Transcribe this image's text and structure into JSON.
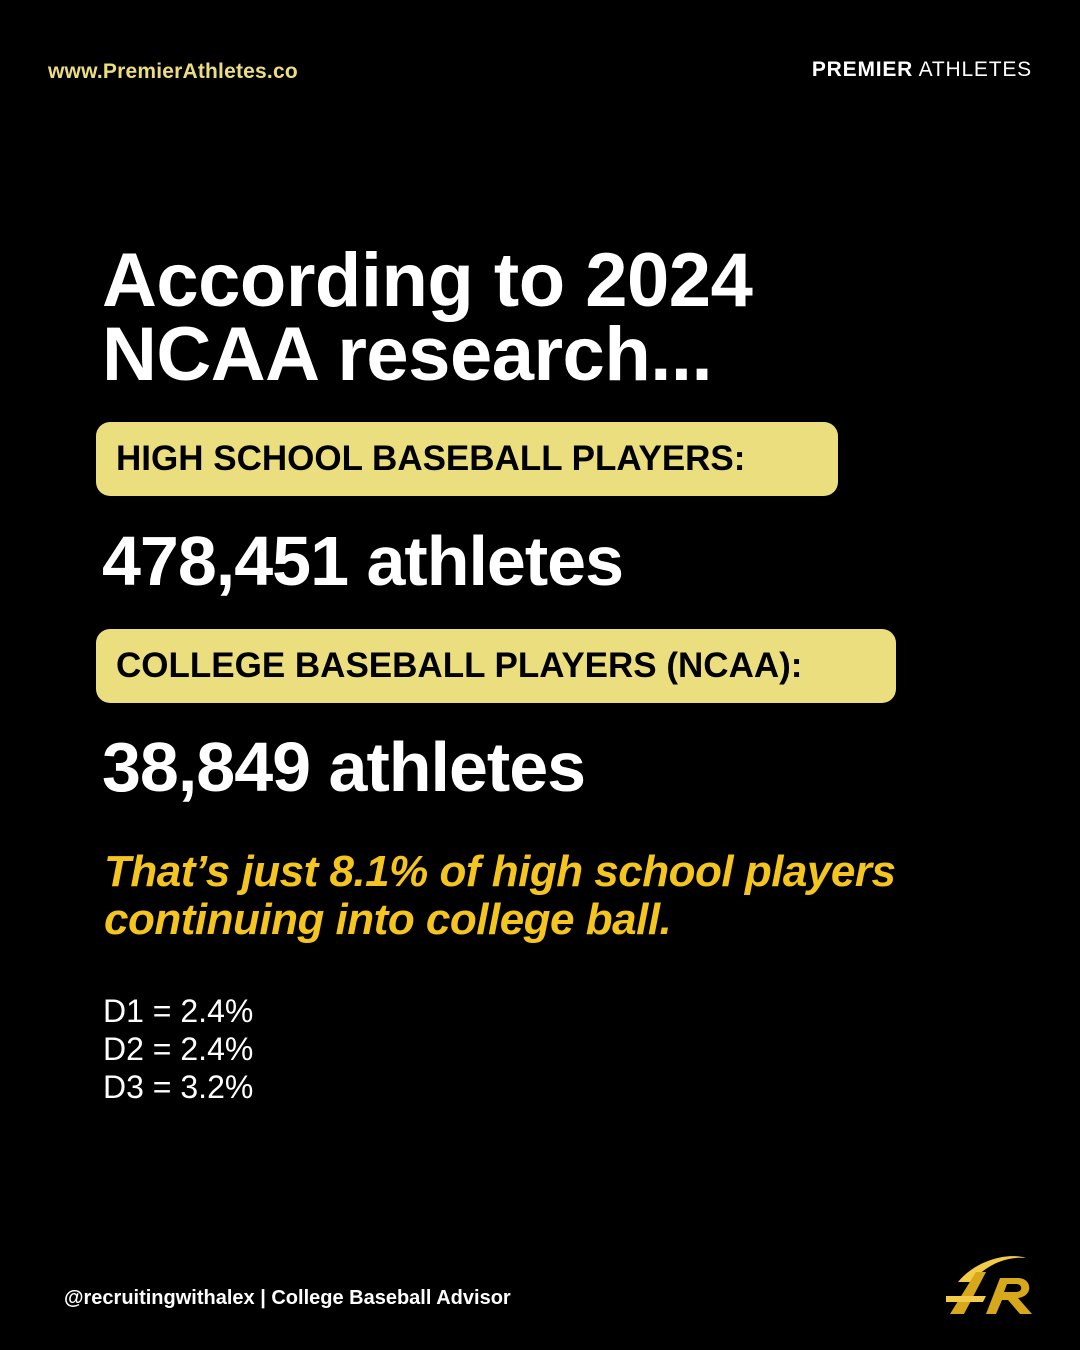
{
  "header": {
    "website": "www.PremierAthletes.co",
    "brand_bold": "PREMIER",
    "brand_light": " ATHLETES"
  },
  "headline": "According to 2024 NCAA research...",
  "high_school": {
    "label": "HIGH SCHOOL BASEBALL PLAYERS:",
    "count": "478,451 athletes"
  },
  "college": {
    "label": "COLLEGE BASEBALL PLAYERS (NCAA):",
    "count": "38,849 athletes"
  },
  "callout": "That’s just 8.1% of high school players continuing into college ball.",
  "divisions": [
    "D1 = 2.4%",
    "D2 = 2.4%",
    "D3 = 3.2%"
  ],
  "footer": "@recruitingwithalex | College Baseball Advisor",
  "logo": {
    "icon": "premier-athletes-pa-logo-icon",
    "gold": "#d8a81c",
    "gold_light": "#f2cc48"
  },
  "colors": {
    "background": "#000000",
    "pill": "#ebde7e",
    "accent_yellow": "#f5c51f",
    "url_color": "#ecde7e"
  }
}
